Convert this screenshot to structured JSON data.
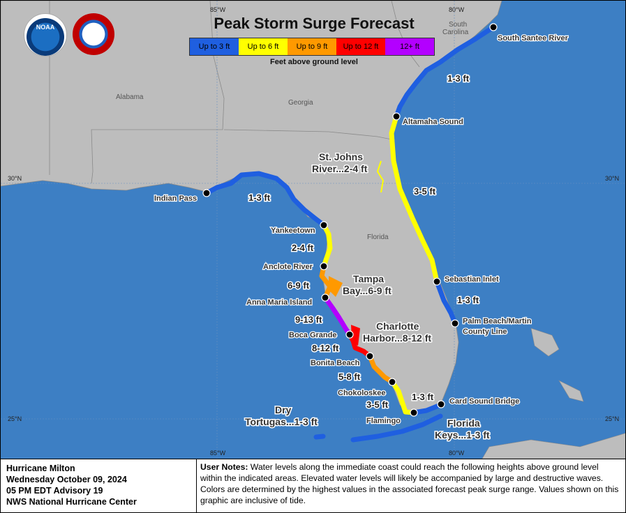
{
  "title": "Peak Storm Surge Forecast",
  "legend": [
    {
      "label": "Up to 3 ft",
      "color": "#1f5fe0"
    },
    {
      "label": "Up to 6 ft",
      "color": "#ffff00"
    },
    {
      "label": "Up to 9 ft",
      "color": "#ff9900"
    },
    {
      "label": "Up to 12 ft",
      "color": "#ff0000"
    },
    {
      "label": "12+ ft",
      "color": "#b300ff"
    }
  ],
  "legend_caption": "Feet above ground level",
  "logos": {
    "noaa": "NOAA",
    "nws": "NATIONAL WEATHER SERVICE"
  },
  "coords": {
    "lon85": "85°W",
    "lon80": "80°W",
    "lat30": "30°N",
    "lat25": "25°N"
  },
  "states": {
    "alabama": "Alabama",
    "georgia": "Georgia",
    "south_carolina_1": "South",
    "south_carolina_2": "Carolina",
    "florida": "Florida"
  },
  "points": {
    "south_santee": "South Santee River",
    "altamaha": "Altamaha Sound",
    "indian_pass": "Indian Pass",
    "yankeetown": "Yankeetown",
    "anclote": "Anclote River",
    "anna_maria": "Anna Maria Island",
    "boca_grande": "Boca Grande",
    "bonita": "Bonita Beach",
    "chokoloskee": "Chokoloskee",
    "flamingo": "Flamingo",
    "card_sound": "Card Sound Bridge",
    "sebastian": "Sebastian Inlet",
    "palm_beach_1": "Palm Beach/Martin",
    "palm_beach_2": "County Line"
  },
  "segments": {
    "s1": "1-3 ft",
    "s2": "3-5 ft",
    "s3": "1-3 ft",
    "s4": "1-3 ft",
    "s5": "2-4 ft",
    "s6": "6-9 ft",
    "s7": "9-13 ft",
    "s8": "8-12 ft",
    "s9": "5-8 ft",
    "s10": "3-5 ft",
    "s11": "1-3 ft"
  },
  "areas": {
    "st_johns_1": "St. Johns",
    "st_johns_2": "River...2-4 ft",
    "tampa_1": "Tampa",
    "tampa_2": "Bay...6-9 ft",
    "charlotte_1": "Charlotte",
    "charlotte_2": "Harbor...8-12 ft",
    "dry_1": "Dry",
    "dry_2": "Tortugas...1-3 ft",
    "keys_1": "Florida",
    "keys_2": "Keys...1-3 ft"
  },
  "footer": {
    "storm": "Hurricane Milton",
    "date": "Wednesday October 09, 2024",
    "advisory": "05 PM EDT Advisory 19",
    "center": "NWS National Hurricane Center",
    "notes_label": "User Notes:",
    "notes_text": " Water levels along the immediate coast could reach the following heights above ground level within the indicated areas. Elevated water levels will likely be accompanied by large and destructive waves. Colors are determined by the highest values in the associated forecast peak surge range. Values shown on this graphic are inclusive of tide."
  }
}
